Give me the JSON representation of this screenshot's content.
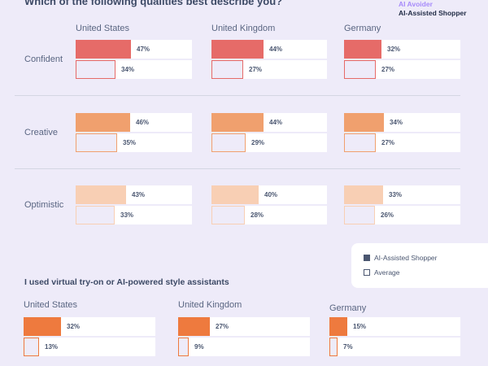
{
  "header": {
    "title": "Which of the following qualities best describe you?",
    "legend_top": [
      "AI Avoider",
      "AI-Assisted Shopper"
    ]
  },
  "legend": {
    "items": [
      {
        "label": "AI-Assisted Shopper",
        "icon": "filled-square-icon"
      },
      {
        "label": "Average",
        "icon": "empty-square-icon"
      }
    ]
  },
  "colors": {
    "confident": "#e66b68",
    "creative": "#f0a06e",
    "optimistic": "#f8cfb4",
    "tryon": "#ee7a3e"
  },
  "chart_data": [
    {
      "type": "bar",
      "title": "Which of the following qualities best describe you?",
      "categories": [
        "United States",
        "United Kingdom",
        "Germany"
      ],
      "rows": [
        {
          "label": "Confident",
          "series": [
            {
              "name": "AI-Assisted Shopper",
              "values": [
                47,
                44,
                32
              ]
            },
            {
              "name": "Average",
              "values": [
                34,
                27,
                27
              ]
            }
          ]
        },
        {
          "label": "Creative",
          "series": [
            {
              "name": "AI-Assisted Shopper",
              "values": [
                46,
                44,
                34
              ]
            },
            {
              "name": "Average",
              "values": [
                35,
                29,
                27
              ]
            }
          ]
        },
        {
          "label": "Optimistic",
          "series": [
            {
              "name": "AI-Assisted Shopper",
              "values": [
                43,
                40,
                33
              ]
            },
            {
              "name": "Average",
              "values": [
                33,
                28,
                26
              ]
            }
          ]
        }
      ],
      "unit": "%",
      "xlim": [
        0,
        100
      ]
    },
    {
      "type": "bar",
      "title": "I used virtual try-on or AI-powered style assistants",
      "categories": [
        "United States",
        "United Kingdom",
        "Germany"
      ],
      "series": [
        {
          "name": "AI-Assisted Shopper",
          "values": [
            32,
            27,
            15
          ]
        },
        {
          "name": "Average",
          "values": [
            13,
            9,
            7
          ]
        }
      ],
      "unit": "%",
      "xlim": [
        0,
        100
      ]
    }
  ]
}
